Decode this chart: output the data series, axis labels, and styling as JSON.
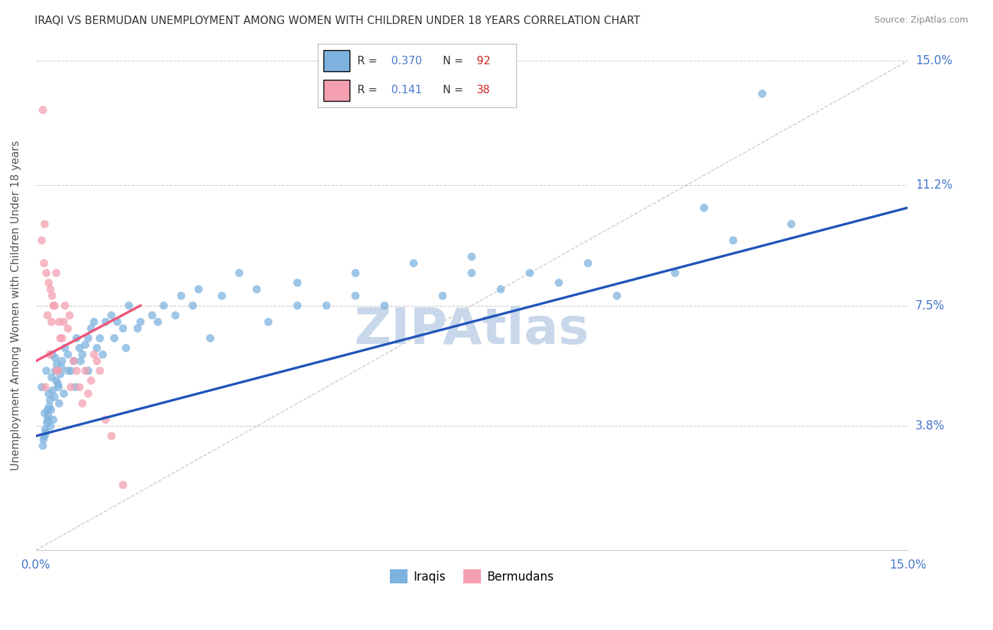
{
  "title": "IRAQI VS BERMUDAN UNEMPLOYMENT AMONG WOMEN WITH CHILDREN UNDER 18 YEARS CORRELATION CHART",
  "source": "Source: ZipAtlas.com",
  "ylabel": "Unemployment Among Women with Children Under 18 years",
  "xlim": [
    0.0,
    15.0
  ],
  "ylim": [
    0.0,
    15.0
  ],
  "iraqi_R": 0.37,
  "iraqi_N": 92,
  "bermudan_R": 0.141,
  "bermudan_N": 38,
  "iraqi_color": "#7EB3E0",
  "bermudan_color": "#F4A0B0",
  "iraqi_line_color": "#2255BB",
  "bermudan_line_color": "#EE5577",
  "ref_line_color": "#CCBBBB",
  "watermark": "ZIPAtlas",
  "watermark_color": "#C8D8EA",
  "title_color": "#333333",
  "axis_label_color": "#4477CC",
  "legend_R_color": "#4477CC",
  "legend_N_color": "#CC2222",
  "grid_color": "#CCCCCC",
  "iraqi_x": [
    0.15,
    0.22,
    0.18,
    0.3,
    0.25,
    0.1,
    0.35,
    0.4,
    0.28,
    0.2,
    0.15,
    0.45,
    0.32,
    0.27,
    0.19,
    0.38,
    0.24,
    0.33,
    0.21,
    0.16,
    0.42,
    0.29,
    0.36,
    0.23,
    0.17,
    0.5,
    0.44,
    0.39,
    0.26,
    0.13,
    0.55,
    0.6,
    0.7,
    0.8,
    0.65,
    0.75,
    0.9,
    1.0,
    0.85,
    0.95,
    1.1,
    1.2,
    1.05,
    1.3,
    1.5,
    1.4,
    1.6,
    1.8,
    2.0,
    2.2,
    2.5,
    2.8,
    3.0,
    3.5,
    4.0,
    4.5,
    5.0,
    5.5,
    6.0,
    7.0,
    7.5,
    8.0,
    9.0,
    10.0,
    11.0,
    12.0,
    12.5,
    0.12,
    0.2,
    0.33,
    0.48,
    0.55,
    0.68,
    0.77,
    0.9,
    1.15,
    1.35,
    1.55,
    1.75,
    2.1,
    2.4,
    2.7,
    3.2,
    3.8,
    4.5,
    5.5,
    6.5,
    7.5,
    8.5,
    9.5,
    11.5,
    13.0
  ],
  "iraqi_y": [
    4.2,
    4.8,
    5.5,
    4.0,
    3.8,
    5.0,
    5.2,
    4.5,
    6.0,
    4.3,
    3.5,
    5.8,
    4.7,
    5.3,
    3.9,
    5.1,
    4.6,
    5.9,
    4.1,
    3.7,
    5.4,
    4.9,
    5.7,
    4.4,
    3.6,
    6.2,
    5.6,
    5.0,
    4.3,
    3.4,
    6.0,
    5.5,
    6.5,
    6.0,
    5.8,
    6.2,
    6.5,
    7.0,
    6.3,
    6.8,
    6.5,
    7.0,
    6.2,
    7.2,
    6.8,
    7.0,
    7.5,
    7.0,
    7.2,
    7.5,
    7.8,
    8.0,
    6.5,
    8.5,
    7.0,
    7.5,
    7.5,
    7.8,
    7.5,
    7.8,
    8.5,
    8.0,
    8.2,
    7.8,
    8.5,
    9.5,
    14.0,
    3.2,
    4.0,
    5.5,
    4.8,
    5.5,
    5.0,
    5.8,
    5.5,
    6.0,
    6.5,
    6.2,
    6.8,
    7.0,
    7.2,
    7.5,
    7.8,
    8.0,
    8.2,
    8.5,
    8.8,
    9.0,
    8.5,
    8.8,
    10.5,
    10.0
  ],
  "bermudan_x": [
    0.12,
    0.18,
    0.25,
    0.3,
    0.2,
    0.15,
    0.35,
    0.4,
    0.28,
    0.22,
    0.1,
    0.45,
    0.32,
    0.27,
    0.5,
    0.38,
    0.24,
    0.42,
    0.16,
    0.55,
    0.6,
    0.7,
    0.8,
    0.65,
    0.75,
    0.9,
    1.0,
    0.85,
    0.95,
    1.1,
    1.2,
    1.05,
    1.3,
    1.5,
    0.48,
    0.36,
    0.14,
    0.58
  ],
  "bermudan_y": [
    13.5,
    8.5,
    8.0,
    7.5,
    7.2,
    10.0,
    8.5,
    7.0,
    7.8,
    8.2,
    9.5,
    6.5,
    7.5,
    7.0,
    7.5,
    5.5,
    6.0,
    6.5,
    5.0,
    6.8,
    5.0,
    5.5,
    4.5,
    5.8,
    5.0,
    4.8,
    6.0,
    5.5,
    5.2,
    5.5,
    4.0,
    5.8,
    3.5,
    2.0,
    7.0,
    5.5,
    8.8,
    7.2
  ],
  "iraqi_line_start_x": 0.0,
  "iraqi_line_end_x": 15.0,
  "iraqi_line_start_y": 3.5,
  "iraqi_line_end_y": 10.5,
  "bermudan_line_start_x": 0.0,
  "bermudan_line_end_x": 1.8,
  "bermudan_line_start_y": 5.8,
  "bermudan_line_end_y": 7.5
}
